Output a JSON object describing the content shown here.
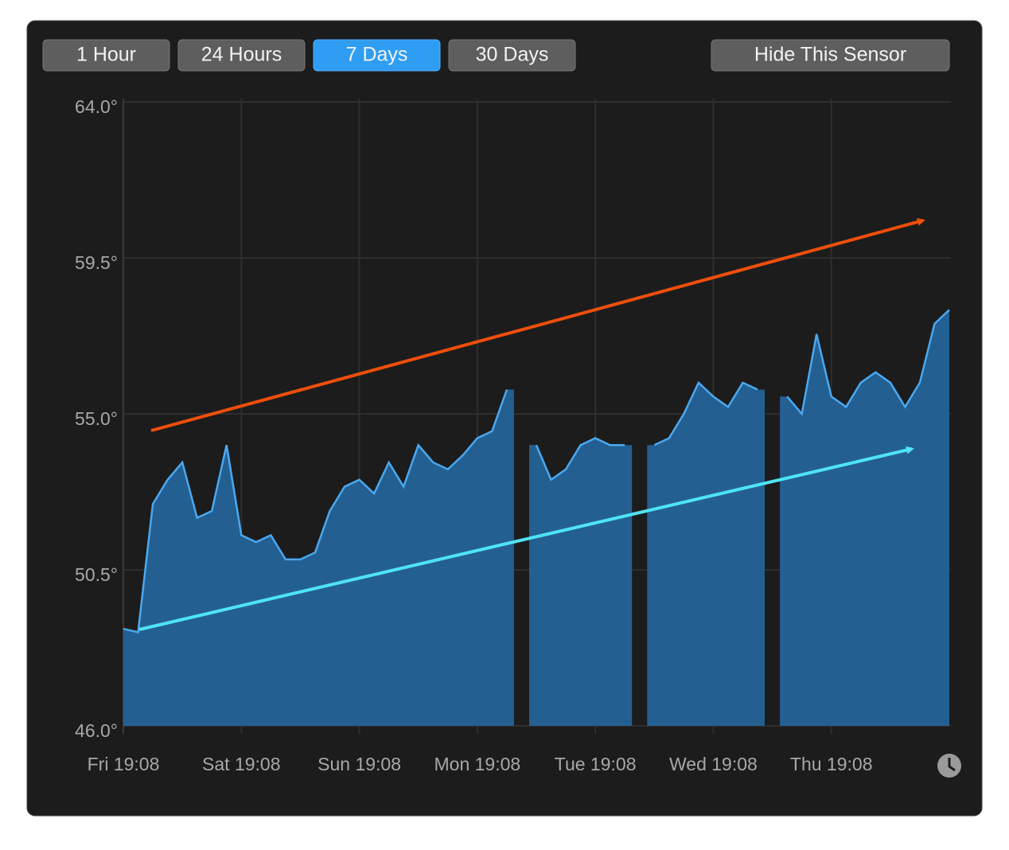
{
  "buttons": [
    {
      "label": "1 Hour",
      "active": false
    },
    {
      "label": "24 Hours",
      "active": false
    },
    {
      "label": "7 Days",
      "active": true
    },
    {
      "label": "30 Days",
      "active": false
    },
    {
      "label": "Hide This Sensor",
      "active": false
    }
  ],
  "chart_data": {
    "type": "area",
    "categories": [
      "Fri 19:08",
      null,
      null,
      null,
      null,
      null,
      null,
      null,
      "Sat 19:08",
      null,
      null,
      null,
      null,
      null,
      null,
      null,
      "Sun 19:08",
      null,
      null,
      null,
      null,
      null,
      null,
      null,
      "Mon 19:08",
      null,
      null,
      null,
      null,
      null,
      null,
      null,
      "Tue 19:08",
      null,
      null,
      null,
      null,
      null,
      null,
      null,
      "Wed 19:08",
      null,
      null,
      null,
      null,
      null,
      null,
      null,
      "Thu 19:08",
      null,
      null,
      null,
      null,
      null,
      null,
      null,
      null
    ],
    "series": [
      {
        "color": "#4aa8f0",
        "fill": "#245f91",
        "values": [
          48.8,
          48.7,
          52.4,
          53.1,
          53.6,
          52.0,
          52.2,
          54.1,
          51.5,
          51.3,
          51.5,
          50.8,
          50.8,
          51.0,
          52.2,
          52.9,
          53.1,
          52.7,
          53.6,
          52.9,
          54.1,
          53.6,
          53.4,
          53.8,
          54.3,
          54.5,
          55.7,
          null,
          54.1,
          53.1,
          53.4,
          54.1,
          54.3,
          54.1,
          54.1,
          null,
          54.1,
          54.3,
          55.0,
          55.9,
          55.5,
          55.2,
          55.9,
          55.7,
          null,
          55.5,
          55.0,
          57.3,
          55.5,
          55.2,
          55.9,
          56.2,
          55.9,
          55.2,
          55.9,
          57.6,
          58.0
        ]
      }
    ],
    "ylim": [
      46,
      64
    ],
    "yticks": [
      {
        "value": 46,
        "label": "46.0°"
      },
      {
        "value": 50.5,
        "label": "50.5°"
      },
      {
        "value": 55,
        "label": "55.0°"
      },
      {
        "value": 59.5,
        "label": "59.5°"
      },
      {
        "value": 64,
        "label": "64.0°"
      }
    ],
    "grid": true
  }
}
